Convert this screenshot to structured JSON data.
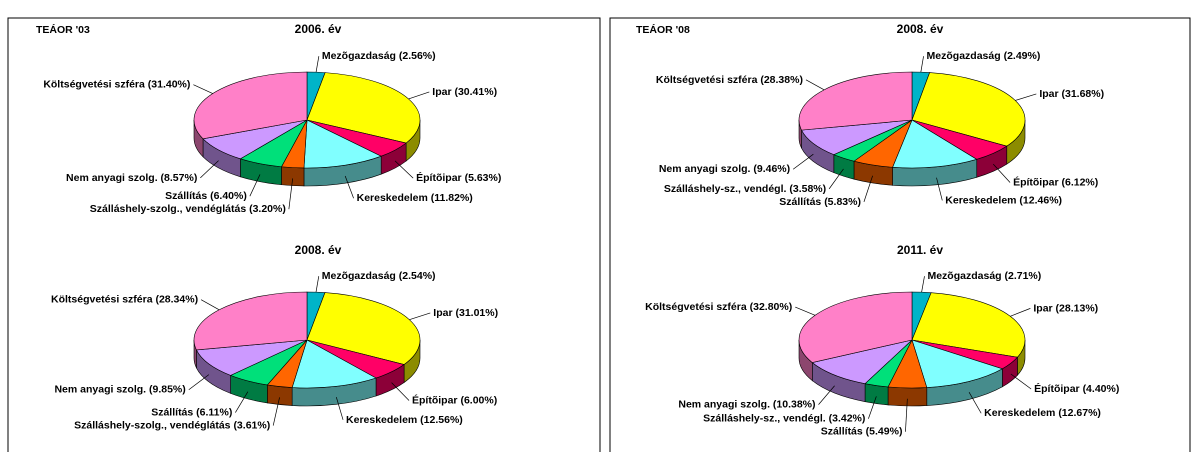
{
  "panel_labels": [
    "TEÁOR '03",
    "TEÁOR '08"
  ],
  "chart_data": [
    {
      "type": "pie3d",
      "title": "2006. év",
      "categories": [
        "Mezõgazdaság",
        "Ipar",
        "Építõipar",
        "Kereskedelem",
        "Szálláshely-szolg., vendéglátás",
        "Szállítás",
        "Nem anyagi szolg.",
        "Költségvetési szféra"
      ],
      "values": [
        2.56,
        30.41,
        5.63,
        11.82,
        3.2,
        6.4,
        8.57,
        31.4
      ],
      "value_labels": [
        "(2.56%)",
        "(30.41%)",
        "(5.63%)",
        "(11.82%)",
        "(3.20%)",
        "(6.40%)",
        "(8.57%)",
        "(31.40%)"
      ],
      "colors": [
        "#00B4C8",
        "#FFFF00",
        "#FF0066",
        "#80FFFF",
        "#FF6600",
        "#00E07A",
        "#CC99FF",
        "#FF80C8"
      ]
    },
    {
      "type": "pie3d",
      "title": "2008. év",
      "categories": [
        "Mezõgazdaság",
        "Ipar",
        "Építõipar",
        "Kereskedelem",
        "Szálláshely-szolg., vendéglátás",
        "Szállítás",
        "Nem anyagi szolg.",
        "Költségvetési szféra"
      ],
      "values": [
        2.54,
        31.01,
        6.0,
        12.56,
        3.61,
        6.11,
        9.85,
        28.34
      ],
      "value_labels": [
        "(2.54%)",
        "(31.01%)",
        "(6.00%)",
        "(12.56%)",
        "(3.61%)",
        "(6.11%)",
        "(9.85%)",
        "(28.34%)"
      ],
      "colors": [
        "#00B4C8",
        "#FFFF00",
        "#FF0066",
        "#80FFFF",
        "#FF6600",
        "#00E07A",
        "#CC99FF",
        "#FF80C8"
      ]
    },
    {
      "type": "pie3d",
      "title": "2008. év",
      "categories": [
        "Mezõgazdaság",
        "Ipar",
        "Építõipar",
        "Kereskedelem",
        "Szállítás",
        "Szálláshely-sz., vendégl.",
        "Nem anyagi szolg.",
        "Költségvetési szféra"
      ],
      "values": [
        2.49,
        31.68,
        6.12,
        12.46,
        5.83,
        3.58,
        9.46,
        28.38
      ],
      "value_labels": [
        "(2.49%)",
        "(31.68%)",
        "(6.12%)",
        "(12.46%)",
        "(5.83%)",
        "(3.58%)",
        "(9.46%)",
        "(28.38%)"
      ],
      "colors": [
        "#00B4C8",
        "#FFFF00",
        "#FF0066",
        "#80FFFF",
        "#FF6600",
        "#00E07A",
        "#CC99FF",
        "#FF80C8"
      ]
    },
    {
      "type": "pie3d",
      "title": "2011. év",
      "categories": [
        "Mezõgazdaság",
        "Ipar",
        "Építõipar",
        "Kereskedelem",
        "Szállítás",
        "Szálláshely-sz., vendégl.",
        "Nem anyagi szolg.",
        "Költségvetési szféra"
      ],
      "values": [
        2.71,
        28.13,
        4.4,
        12.67,
        5.49,
        3.42,
        10.38,
        32.8
      ],
      "value_labels": [
        "(2.71%)",
        "(28.13%)",
        "(4.40%)",
        "(12.67%)",
        "(5.49%)",
        "(3.42%)",
        "(10.38%)",
        "(32.80%)"
      ],
      "colors": [
        "#00B4C8",
        "#FFFF00",
        "#FF0066",
        "#80FFFF",
        "#FF6600",
        "#00E07A",
        "#CC99FF",
        "#FF80C8"
      ]
    }
  ]
}
